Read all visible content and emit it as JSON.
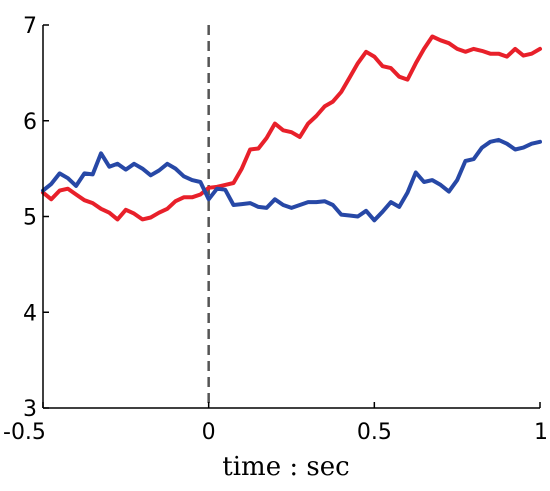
{
  "chart_data": {
    "type": "line",
    "title": "",
    "xlabel": "time : sec",
    "ylabel": "",
    "xlim": [
      -0.5,
      1
    ],
    "ylim": [
      3,
      7
    ],
    "xticks": [
      -0.5,
      0,
      0.5,
      1
    ],
    "xtick_labels": [
      "-0.5",
      "0",
      "0.5",
      "1"
    ],
    "yticks": [
      3,
      4,
      5,
      6,
      7
    ],
    "ytick_labels": [
      "3",
      "4",
      "5",
      "6",
      "7"
    ],
    "grid": false,
    "vline": {
      "x": 0,
      "style": "dashed",
      "color": "#555555"
    },
    "series": [
      {
        "color": "#e8202a",
        "points": [
          [
            -0.5,
            5.25
          ],
          [
            -0.475,
            5.18
          ],
          [
            -0.45,
            5.27
          ],
          [
            -0.425,
            5.29
          ],
          [
            -0.4,
            5.23
          ],
          [
            -0.375,
            5.17
          ],
          [
            -0.35,
            5.14
          ],
          [
            -0.325,
            5.08
          ],
          [
            -0.3,
            5.04
          ],
          [
            -0.275,
            4.97
          ],
          [
            -0.25,
            5.07
          ],
          [
            -0.225,
            5.03
          ],
          [
            -0.2,
            4.97
          ],
          [
            -0.175,
            4.99
          ],
          [
            -0.15,
            5.04
          ],
          [
            -0.125,
            5.08
          ],
          [
            -0.1,
            5.16
          ],
          [
            -0.075,
            5.2
          ],
          [
            -0.05,
            5.2
          ],
          [
            -0.025,
            5.23
          ],
          [
            0,
            5.3
          ],
          [
            0.025,
            5.31
          ],
          [
            0.05,
            5.33
          ],
          [
            0.075,
            5.35
          ],
          [
            0.1,
            5.5
          ],
          [
            0.125,
            5.7
          ],
          [
            0.15,
            5.71
          ],
          [
            0.175,
            5.82
          ],
          [
            0.2,
            5.97
          ],
          [
            0.225,
            5.9
          ],
          [
            0.25,
            5.88
          ],
          [
            0.275,
            5.83
          ],
          [
            0.3,
            5.97
          ],
          [
            0.325,
            6.05
          ],
          [
            0.35,
            6.15
          ],
          [
            0.375,
            6.2
          ],
          [
            0.4,
            6.3
          ],
          [
            0.425,
            6.45
          ],
          [
            0.45,
            6.6
          ],
          [
            0.475,
            6.72
          ],
          [
            0.5,
            6.67
          ],
          [
            0.525,
            6.57
          ],
          [
            0.55,
            6.55
          ],
          [
            0.575,
            6.46
          ],
          [
            0.6,
            6.43
          ],
          [
            0.625,
            6.6
          ],
          [
            0.65,
            6.75
          ],
          [
            0.675,
            6.88
          ],
          [
            0.7,
            6.84
          ],
          [
            0.725,
            6.81
          ],
          [
            0.75,
            6.75
          ],
          [
            0.775,
            6.72
          ],
          [
            0.8,
            6.75
          ],
          [
            0.825,
            6.73
          ],
          [
            0.85,
            6.7
          ],
          [
            0.875,
            6.7
          ],
          [
            0.9,
            6.67
          ],
          [
            0.925,
            6.75
          ],
          [
            0.95,
            6.68
          ],
          [
            0.975,
            6.7
          ],
          [
            1.0,
            6.75
          ]
        ]
      },
      {
        "color": "#2748a6",
        "points": [
          [
            -0.5,
            5.27
          ],
          [
            -0.475,
            5.34
          ],
          [
            -0.45,
            5.45
          ],
          [
            -0.425,
            5.4
          ],
          [
            -0.4,
            5.32
          ],
          [
            -0.375,
            5.45
          ],
          [
            -0.35,
            5.44
          ],
          [
            -0.325,
            5.66
          ],
          [
            -0.3,
            5.52
          ],
          [
            -0.275,
            5.55
          ],
          [
            -0.25,
            5.49
          ],
          [
            -0.225,
            5.55
          ],
          [
            -0.2,
            5.5
          ],
          [
            -0.175,
            5.43
          ],
          [
            -0.15,
            5.48
          ],
          [
            -0.125,
            5.55
          ],
          [
            -0.1,
            5.5
          ],
          [
            -0.075,
            5.42
          ],
          [
            -0.05,
            5.38
          ],
          [
            -0.025,
            5.36
          ],
          [
            0,
            5.18
          ],
          [
            0.025,
            5.29
          ],
          [
            0.05,
            5.28
          ],
          [
            0.075,
            5.12
          ],
          [
            0.1,
            5.13
          ],
          [
            0.125,
            5.14
          ],
          [
            0.15,
            5.1
          ],
          [
            0.175,
            5.09
          ],
          [
            0.2,
            5.18
          ],
          [
            0.225,
            5.12
          ],
          [
            0.25,
            5.09
          ],
          [
            0.275,
            5.12
          ],
          [
            0.3,
            5.15
          ],
          [
            0.325,
            5.15
          ],
          [
            0.35,
            5.16
          ],
          [
            0.375,
            5.12
          ],
          [
            0.4,
            5.02
          ],
          [
            0.425,
            5.01
          ],
          [
            0.45,
            5.0
          ],
          [
            0.475,
            5.06
          ],
          [
            0.5,
            4.96
          ],
          [
            0.525,
            5.05
          ],
          [
            0.55,
            5.15
          ],
          [
            0.575,
            5.1
          ],
          [
            0.6,
            5.25
          ],
          [
            0.625,
            5.46
          ],
          [
            0.65,
            5.36
          ],
          [
            0.675,
            5.38
          ],
          [
            0.7,
            5.33
          ],
          [
            0.725,
            5.26
          ],
          [
            0.75,
            5.38
          ],
          [
            0.775,
            5.58
          ],
          [
            0.8,
            5.6
          ],
          [
            0.825,
            5.72
          ],
          [
            0.85,
            5.78
          ],
          [
            0.875,
            5.8
          ],
          [
            0.9,
            5.76
          ],
          [
            0.925,
            5.7
          ],
          [
            0.95,
            5.72
          ],
          [
            0.975,
            5.76
          ],
          [
            1.0,
            5.78
          ]
        ]
      }
    ]
  }
}
